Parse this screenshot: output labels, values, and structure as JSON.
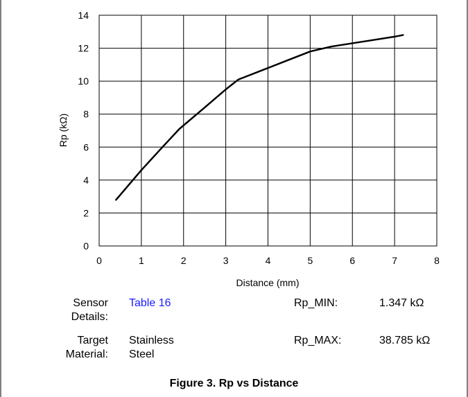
{
  "chart_data": {
    "type": "line",
    "xlabel": "Distance (mm)",
    "ylabel": "Rp (kΩ)",
    "xlim": [
      0,
      8
    ],
    "ylim": [
      0,
      14
    ],
    "xticks": [
      0,
      1,
      2,
      3,
      4,
      5,
      6,
      7,
      8
    ],
    "yticks": [
      0,
      2,
      4,
      6,
      8,
      10,
      12,
      14
    ],
    "grid": true,
    "series": [
      {
        "x": [
          0.4,
          1.0,
          1.5,
          1.9,
          2.5,
          3.0,
          3.3,
          3.5,
          4.0,
          4.5,
          5.0,
          5.5,
          6.0,
          6.5,
          7.0,
          7.2
        ],
        "values": [
          2.8,
          4.6,
          6.0,
          7.1,
          8.4,
          9.5,
          10.1,
          10.3,
          10.8,
          11.3,
          11.8,
          12.1,
          12.3,
          12.5,
          12.7,
          12.8
        ]
      }
    ]
  },
  "info": {
    "sensor_label": "Sensor Details:",
    "sensor_value": "Table 16",
    "target_label": "Target Material:",
    "target_value": "Stainless Steel",
    "rp_min_label": "Rp_MIN:",
    "rp_min_value": "1.347 kΩ",
    "rp_max_label": "Rp_MAX:",
    "rp_max_value": "38.785 kΩ"
  },
  "caption": "Figure 3. Rp vs Distance",
  "colors": {
    "line": "#000000",
    "grid": "#000000",
    "link": "#1a1aff"
  }
}
